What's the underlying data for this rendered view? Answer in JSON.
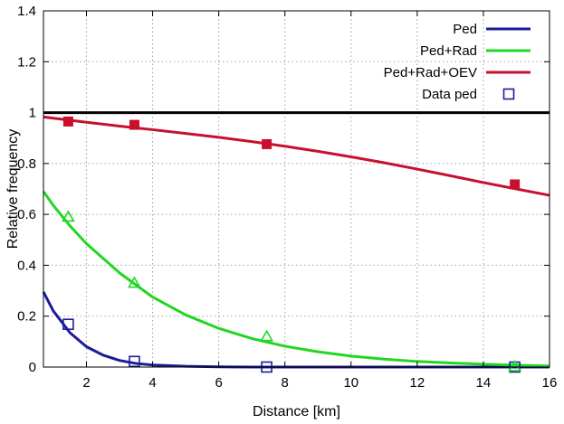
{
  "chart_data": {
    "type": "line",
    "title": "",
    "xlabel": "Distance [km]",
    "ylabel": "Relative frequency",
    "xlim": [
      0.7,
      16
    ],
    "ylim": [
      0,
      1.4
    ],
    "xticks": [
      2,
      4,
      6,
      8,
      10,
      12,
      14,
      16
    ],
    "yticks": [
      0,
      0.2,
      0.4,
      0.6,
      0.8,
      1,
      1.2,
      1.4
    ],
    "grid": true,
    "legend_position": "top-right",
    "reference_line": {
      "y": 1,
      "color": "#000000"
    },
    "series": [
      {
        "name": "Ped",
        "kind": "line",
        "color": "#1c1c96",
        "x": [
          0.7,
          1.0,
          1.5,
          2.0,
          2.5,
          3.0,
          3.5,
          4.0,
          5.0,
          6.0,
          7.0,
          8.0,
          10.0,
          12.0,
          14.0,
          16.0
        ],
        "y": [
          0.295,
          0.22,
          0.135,
          0.08,
          0.047,
          0.026,
          0.014,
          0.008,
          0.003,
          0.001,
          0.0,
          0.0,
          0.0,
          0.0,
          0.0,
          0.0
        ]
      },
      {
        "name": "Ped+Rad",
        "kind": "line",
        "color": "#22d622",
        "x": [
          0.7,
          1.0,
          1.5,
          2.0,
          3.0,
          4.0,
          5.0,
          6.0,
          7.0,
          8.0,
          9.0,
          10.0,
          11.0,
          12.0,
          13.0,
          14.0,
          15.0,
          16.0
        ],
        "y": [
          0.69,
          0.635,
          0.555,
          0.485,
          0.37,
          0.275,
          0.205,
          0.152,
          0.112,
          0.082,
          0.06,
          0.043,
          0.031,
          0.022,
          0.016,
          0.011,
          0.007,
          0.004
        ]
      },
      {
        "name": "Ped+Rad+OEV",
        "kind": "line",
        "color": "#c8102e",
        "x": [
          0.7,
          1.5,
          2.0,
          3.0,
          4.0,
          5.0,
          6.0,
          7.0,
          8.0,
          9.0,
          10.0,
          11.0,
          12.0,
          13.0,
          14.0,
          15.0,
          16.0
        ],
        "y": [
          0.983,
          0.97,
          0.962,
          0.947,
          0.933,
          0.918,
          0.903,
          0.886,
          0.868,
          0.848,
          0.826,
          0.803,
          0.778,
          0.752,
          0.725,
          0.7,
          0.675
        ]
      },
      {
        "name": "Data ped",
        "kind": "scatter",
        "marker": "open-square",
        "color": "#1c1ca0",
        "x": [
          1.45,
          3.45,
          7.45,
          14.95
        ],
        "y": [
          0.168,
          0.022,
          0.0,
          0.0
        ]
      },
      {
        "kind": "scatter",
        "marker": "open-triangle",
        "color": "#22d622",
        "x": [
          1.45,
          3.45,
          7.45,
          14.95
        ],
        "y": [
          0.59,
          0.33,
          0.12,
          0.002
        ]
      },
      {
        "kind": "scatter",
        "marker": "filled-square",
        "color": "#c8102e",
        "x": [
          1.45,
          3.45,
          7.45,
          14.95
        ],
        "y": [
          0.965,
          0.952,
          0.876,
          0.718
        ]
      }
    ]
  }
}
